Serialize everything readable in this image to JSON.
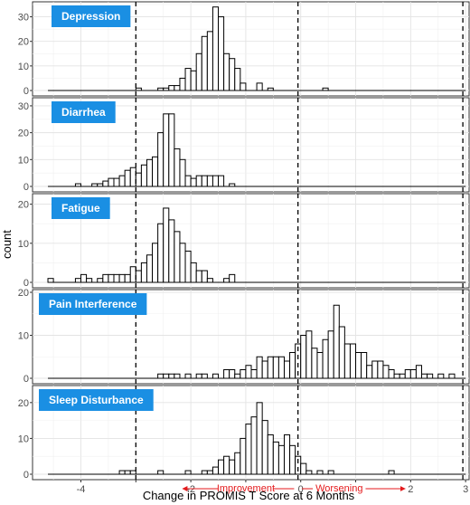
{
  "chart_data": {
    "type": "histogram",
    "xlabel": "Change in PROMIS T Score at 6 Months",
    "ylabel": "count",
    "xlim": [
      -4.8,
      3
    ],
    "x_ticks": [
      -4,
      -3,
      -2,
      -1,
      0,
      1,
      2,
      3
    ],
    "x_tick_labels": [
      "-4",
      "",
      "-2",
      "",
      "0",
      "",
      "2",
      "3"
    ],
    "y_ticks": [
      0,
      10,
      20,
      30
    ],
    "grid": true,
    "bin_width": 0.1,
    "vlines": [
      -3,
      -0.05,
      2.95
    ],
    "annotations": [
      {
        "text": "Improvement",
        "direction": "left",
        "x_from": -0.45,
        "x_to": -2.15,
        "y_label": "Improvement",
        "color": "#e41a1c"
      },
      {
        "text": "Worsening",
        "direction": "right",
        "x_from": 0.35,
        "x_to": 1.9,
        "color": "#e41a1c"
      }
    ],
    "panels": [
      {
        "name": "Depression",
        "ylim": [
          0,
          35
        ],
        "x_line_range": [
          -4.6,
          3.0
        ],
        "bins": [
          [
            -3.0,
            1
          ],
          [
            -2.6,
            1
          ],
          [
            -2.5,
            1
          ],
          [
            -2.4,
            2
          ],
          [
            -2.3,
            2
          ],
          [
            -2.2,
            5
          ],
          [
            -2.1,
            9
          ],
          [
            -2.0,
            8
          ],
          [
            -1.9,
            15
          ],
          [
            -1.8,
            22
          ],
          [
            -1.7,
            24
          ],
          [
            -1.6,
            34
          ],
          [
            -1.5,
            30
          ],
          [
            -1.4,
            15
          ],
          [
            -1.3,
            13
          ],
          [
            -1.2,
            9
          ],
          [
            -1.1,
            3
          ],
          [
            -0.8,
            3
          ],
          [
            -0.6,
            1
          ],
          [
            0.4,
            1
          ]
        ]
      },
      {
        "name": "Diarrhea",
        "ylim": [
          0,
          32
        ],
        "x_line_range": [
          -4.6,
          3.0
        ],
        "bins": [
          [
            -4.1,
            1
          ],
          [
            -3.8,
            1
          ],
          [
            -3.7,
            1
          ],
          [
            -3.6,
            2
          ],
          [
            -3.5,
            3
          ],
          [
            -3.4,
            3
          ],
          [
            -3.3,
            4
          ],
          [
            -3.2,
            6
          ],
          [
            -3.1,
            7
          ],
          [
            -3.0,
            5
          ],
          [
            -2.9,
            8
          ],
          [
            -2.8,
            10
          ],
          [
            -2.7,
            11
          ],
          [
            -2.6,
            20
          ],
          [
            -2.5,
            27
          ],
          [
            -2.4,
            27
          ],
          [
            -2.3,
            14
          ],
          [
            -2.2,
            10
          ],
          [
            -2.1,
            4
          ],
          [
            -2.0,
            3
          ],
          [
            -1.9,
            4
          ],
          [
            -1.8,
            4
          ],
          [
            -1.7,
            4
          ],
          [
            -1.6,
            4
          ],
          [
            -1.5,
            4
          ],
          [
            -1.3,
            1
          ]
        ]
      },
      {
        "name": "Fatigue",
        "ylim": [
          0,
          22
        ],
        "x_line_range": [
          -4.6,
          3.0
        ],
        "bins": [
          [
            -4.6,
            1
          ],
          [
            -4.1,
            1
          ],
          [
            -4.0,
            2
          ],
          [
            -3.9,
            1
          ],
          [
            -3.7,
            1
          ],
          [
            -3.6,
            2
          ],
          [
            -3.5,
            2
          ],
          [
            -3.4,
            2
          ],
          [
            -3.3,
            2
          ],
          [
            -3.2,
            2
          ],
          [
            -3.1,
            4
          ],
          [
            -3.0,
            3
          ],
          [
            -2.9,
            5
          ],
          [
            -2.8,
            7
          ],
          [
            -2.7,
            10
          ],
          [
            -2.6,
            15
          ],
          [
            -2.5,
            19
          ],
          [
            -2.4,
            16
          ],
          [
            -2.3,
            13
          ],
          [
            -2.2,
            10
          ],
          [
            -2.1,
            8
          ],
          [
            -2.0,
            5
          ],
          [
            -1.9,
            3
          ],
          [
            -1.8,
            3
          ],
          [
            -1.7,
            1
          ],
          [
            -1.4,
            1
          ],
          [
            -1.3,
            2
          ]
        ]
      },
      {
        "name": "Pain Interference",
        "ylim": [
          0,
          20
        ],
        "x_line_range": [
          -4.6,
          3.0
        ],
        "bins": [
          [
            -2.6,
            1
          ],
          [
            -2.5,
            1
          ],
          [
            -2.4,
            1
          ],
          [
            -2.3,
            1
          ],
          [
            -2.1,
            1
          ],
          [
            -1.9,
            1
          ],
          [
            -1.8,
            1
          ],
          [
            -1.6,
            1
          ],
          [
            -1.4,
            2
          ],
          [
            -1.3,
            2
          ],
          [
            -1.2,
            1
          ],
          [
            -1.1,
            2
          ],
          [
            -1.0,
            3
          ],
          [
            -0.9,
            2
          ],
          [
            -0.8,
            5
          ],
          [
            -0.7,
            4
          ],
          [
            -0.6,
            5
          ],
          [
            -0.5,
            5
          ],
          [
            -0.4,
            5
          ],
          [
            -0.3,
            4
          ],
          [
            -0.2,
            6
          ],
          [
            -0.1,
            8
          ],
          [
            0.0,
            10
          ],
          [
            0.1,
            11
          ],
          [
            0.2,
            7
          ],
          [
            0.3,
            6
          ],
          [
            0.4,
            9
          ],
          [
            0.5,
            11
          ],
          [
            0.6,
            17
          ],
          [
            0.7,
            12
          ],
          [
            0.8,
            8
          ],
          [
            0.9,
            8
          ],
          [
            1.0,
            6
          ],
          [
            1.1,
            6
          ],
          [
            1.2,
            3
          ],
          [
            1.3,
            4
          ],
          [
            1.4,
            4
          ],
          [
            1.5,
            3
          ],
          [
            1.6,
            2
          ],
          [
            1.7,
            1
          ],
          [
            1.8,
            1
          ],
          [
            1.9,
            2
          ],
          [
            2.0,
            2
          ],
          [
            2.1,
            3
          ],
          [
            2.2,
            1
          ],
          [
            2.3,
            1
          ],
          [
            2.5,
            1
          ],
          [
            2.7,
            1
          ]
        ]
      },
      {
        "name": "Sleep Disturbance",
        "ylim": [
          0,
          24
        ],
        "x_line_range": [
          -4.6,
          3.0
        ],
        "bins": [
          [
            -3.3,
            1
          ],
          [
            -3.2,
            1
          ],
          [
            -3.1,
            1
          ],
          [
            -2.6,
            1
          ],
          [
            -2.1,
            1
          ],
          [
            -1.8,
            1
          ],
          [
            -1.7,
            1
          ],
          [
            -1.6,
            2
          ],
          [
            -1.5,
            4
          ],
          [
            -1.4,
            5
          ],
          [
            -1.3,
            4
          ],
          [
            -1.2,
            6
          ],
          [
            -1.1,
            10
          ],
          [
            -1.0,
            14
          ],
          [
            -0.9,
            16
          ],
          [
            -0.8,
            20
          ],
          [
            -0.7,
            15
          ],
          [
            -0.6,
            11
          ],
          [
            -0.5,
            9
          ],
          [
            -0.4,
            8
          ],
          [
            -0.3,
            11
          ],
          [
            -0.2,
            8
          ],
          [
            -0.1,
            5
          ],
          [
            0.0,
            3
          ],
          [
            0.1,
            1
          ],
          [
            0.3,
            1
          ],
          [
            0.5,
            1
          ],
          [
            1.6,
            1
          ]
        ]
      }
    ]
  }
}
